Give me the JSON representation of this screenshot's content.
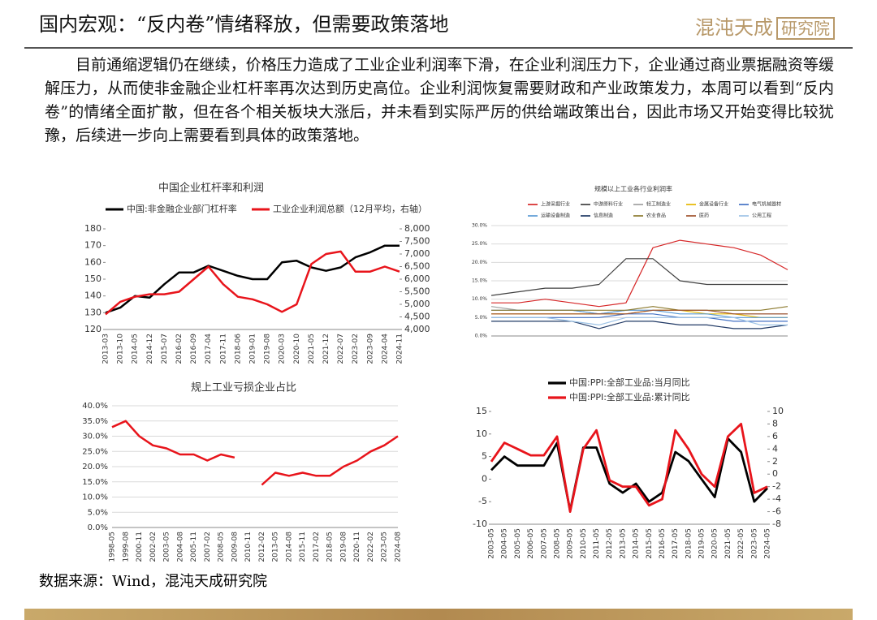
{
  "header": {
    "title": "国内宏观：“反内卷”情绪释放，但需要政策落地",
    "logo": "混沌天成",
    "logo_box": "研究院"
  },
  "body": "目前通缩逻辑仍在继续，价格压力造成了工业企业利润率下滑，在企业利润压力下，企业通过商业票据融资等缓解压力，从而使非金融企业杠杆率再次达到历史高位。企业利润恢复需要财政和产业政策发力，本周可以看到“反内卷”的情绪全面扩散，但在各个相关板块大涨后，并未看到实际严厉的供给端政策出台，因此市场又开始变得比较犹豫，后续进一步向上需要看到具体的政策落地。",
  "source": "数据来源：Wind，混沌天成研究院",
  "chart_data": [
    {
      "type": "line",
      "title": "中国企业杠杆率和利润",
      "categories": [
        "2013-03",
        "2013-10",
        "2014-05",
        "2014-12",
        "2015-07",
        "2016-02",
        "2016-09",
        "2017-04",
        "2017-11",
        "2018-06",
        "2019-01",
        "2019-08",
        "2020-03",
        "2020-10",
        "2021-05",
        "2021-12",
        "2022-07",
        "2023-02",
        "2023-09",
        "2024-04",
        "2024-11"
      ],
      "series": [
        {
          "name": "中国:非金融企业部门杠杆率",
          "color": "#000000",
          "values": [
            130,
            133,
            140,
            139,
            147,
            154,
            154,
            158,
            155,
            152,
            150,
            150,
            160,
            161,
            157,
            155,
            157,
            163,
            166,
            170,
            170
          ]
        },
        {
          "name": "工业企业利润总额（12月平均，右轴）",
          "color": "#e8141b",
          "axis": "y2",
          "values": [
            4600,
            5100,
            5300,
            5400,
            5400,
            5500,
            6000,
            6500,
            5800,
            5300,
            5200,
            5000,
            4700,
            5000,
            6600,
            7000,
            7100,
            6300,
            6300,
            6500,
            6300
          ]
        }
      ],
      "ylim": [
        120,
        180
      ],
      "yticks": [
        120,
        130,
        140,
        150,
        160,
        170,
        180
      ],
      "y2lim": [
        4000,
        8000
      ],
      "y2ticks": [
        {
          "value": 4000,
          "label": "4,000"
        },
        {
          "value": 4500,
          "label": "4,500"
        },
        {
          "value": 5000,
          "label": "5,000"
        },
        {
          "value": 5500,
          "label": "5,500"
        },
        {
          "value": 6000,
          "label": "6,000"
        },
        {
          "value": 6500,
          "label": "6,500"
        },
        {
          "value": 7000,
          "label": "7,000"
        },
        {
          "value": 7500,
          "label": "7,500"
        },
        {
          "value": 8000,
          "label": "8,000"
        }
      ],
      "grid": false
    },
    {
      "type": "line",
      "title": "规模以上工业各行业利润率",
      "categories": [
        null,
        null,
        null,
        null,
        null,
        null,
        null,
        null,
        null,
        null,
        null,
        null
      ],
      "series": [
        {
          "name": "上游采掘行业",
          "color": "#d62728",
          "values": [
            9,
            9,
            10,
            9,
            8,
            9,
            24,
            26,
            25,
            24,
            22,
            18
          ]
        },
        {
          "name": "中游原料行业",
          "color": "#404040",
          "values": [
            11,
            12,
            13,
            13,
            14,
            21,
            21,
            15,
            14,
            14,
            14,
            14
          ]
        },
        {
          "name": "轻工制造业",
          "color": "#a0a0a0",
          "values": [
            8,
            7,
            7,
            7,
            6,
            7,
            7,
            7,
            7,
            6,
            6,
            6
          ]
        },
        {
          "name": "金属设备行业",
          "color": "#e6b800",
          "values": [
            6,
            6,
            6,
            6,
            6,
            6,
            7,
            7,
            6,
            6,
            5,
            5
          ]
        },
        {
          "name": "电气机械器材",
          "color": "#4472c4",
          "values": [
            5,
            5,
            5,
            5,
            5,
            6,
            6,
            5,
            5,
            4,
            4,
            4
          ]
        },
        {
          "name": "运输设备制造",
          "color": "#5b9bd5",
          "values": [
            7,
            7,
            7,
            7,
            6,
            7,
            7,
            6,
            6,
            5,
            5,
            5
          ]
        },
        {
          "name": "信息制造",
          "color": "#1f3864",
          "values": [
            4,
            4,
            4,
            4,
            2,
            4,
            4,
            3,
            3,
            2,
            2,
            3
          ]
        },
        {
          "name": "农业食品",
          "color": "#8c7a2e",
          "values": [
            7,
            7,
            7,
            7,
            7,
            7,
            8,
            7,
            7,
            7,
            7,
            8
          ]
        },
        {
          "name": "医药",
          "color": "#a0522d",
          "values": [
            6,
            6,
            6,
            6,
            6,
            6,
            7,
            7,
            7,
            6,
            6,
            6
          ]
        },
        {
          "name": "公用工程",
          "color": "#9dc3e6",
          "values": [
            5,
            5,
            5,
            4,
            3,
            5,
            5,
            5,
            5,
            5,
            3,
            3
          ]
        }
      ],
      "ylim": [
        0,
        30
      ],
      "yticks": [
        {
          "value": 0,
          "label": "0.0%"
        },
        {
          "value": 5,
          "label": "5.0%"
        },
        {
          "value": 10,
          "label": "10.0%"
        },
        {
          "value": 15,
          "label": "15.0%"
        },
        {
          "value": 20,
          "label": "20.0%"
        },
        {
          "value": 25,
          "label": "25.0%"
        },
        {
          "value": 30,
          "label": "30.0%"
        }
      ],
      "grid": true
    },
    {
      "type": "line",
      "title": "规上工业亏损企业占比",
      "categories": [
        "1998-05",
        "1999-08",
        "2000-11",
        "2002-02",
        "2003-05",
        "2004-08",
        "2005-11",
        "2007-02",
        "2008-05",
        "2009-08",
        "2010-11",
        "2012-02",
        "2013-05",
        "2014-08",
        "2015-11",
        "2017-02",
        "2018-05",
        "2019-08",
        "2020-11",
        "2022-02",
        "2023-05",
        "2024-08"
      ],
      "series": [
        {
          "name": "规上工业亏损企业占比",
          "color": "#e8141b",
          "values": [
            33,
            35,
            30,
            27,
            26,
            24,
            24,
            22,
            24,
            23,
            null,
            14,
            18,
            17,
            18,
            17,
            17,
            20,
            22,
            25,
            27,
            30
          ]
        }
      ],
      "ylim": [
        0,
        40
      ],
      "yticks": [
        {
          "value": 0,
          "label": "0.0%"
        },
        {
          "value": 5,
          "label": "5.0%"
        },
        {
          "value": 10,
          "label": "10.0%"
        },
        {
          "value": 15,
          "label": "15.0%"
        },
        {
          "value": 20,
          "label": "20.0%"
        },
        {
          "value": 25,
          "label": "25.0%"
        },
        {
          "value": 30,
          "label": "30.0%"
        },
        {
          "value": 35,
          "label": "35.0%"
        },
        {
          "value": 40,
          "label": "40.0%"
        }
      ],
      "grid": true
    },
    {
      "type": "line",
      "categories": [
        "2003-05",
        "2004-05",
        "2005-05",
        "2006-05",
        "2007-05",
        "2008-05",
        "2009-05",
        "2010-05",
        "2011-05",
        "2012-05",
        "2013-05",
        "2014-05",
        "2015-05",
        "2016-05",
        "2017-05",
        "2018-05",
        "2019-05",
        "2020-05",
        "2021-05",
        "2022-05",
        "2023-05",
        "2024-05"
      ],
      "series": [
        {
          "name": "中国:PPI:全部工业品:当月同比",
          "color": "#000000",
          "values": [
            2,
            5,
            3,
            3,
            3,
            8,
            -7,
            7,
            7,
            -1,
            -3,
            -1,
            -5,
            -3,
            6,
            4,
            0,
            -4,
            9,
            6,
            -5,
            -2
          ]
        },
        {
          "name": "中国:PPI:全部工业品:累计同比",
          "color": "#e8141b",
          "axis": "y2",
          "values": [
            2,
            5,
            4,
            3,
            3,
            6,
            -6,
            4,
            7,
            -1,
            -2,
            -2,
            -5,
            -4,
            7,
            4,
            0,
            -2,
            6,
            8,
            -3,
            -2
          ]
        }
      ],
      "ylim": [
        -10,
        15
      ],
      "yticks": [
        -10,
        -5,
        0,
        5,
        10,
        15
      ],
      "y2lim": [
        -8,
        10
      ],
      "y2ticks": [
        -8,
        -6,
        -4,
        -2,
        0,
        2,
        4,
        6,
        8,
        10
      ],
      "grid": false
    }
  ]
}
